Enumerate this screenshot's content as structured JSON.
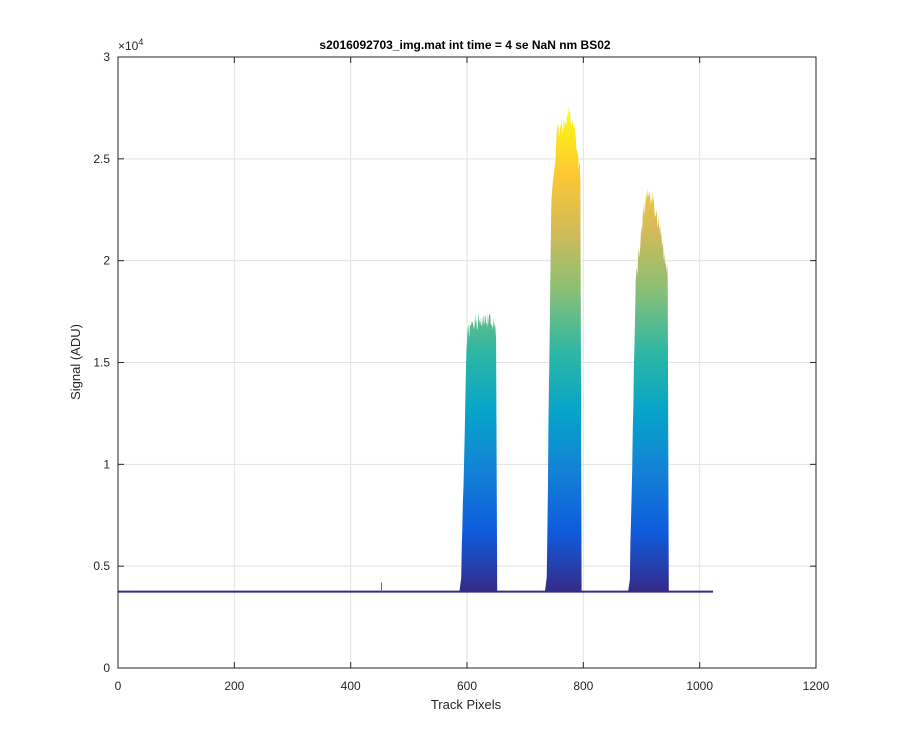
{
  "chart_data": {
    "type": "area",
    "title": "s2016092703_img.mat int time = 4 se  NaN nm BS02",
    "xlabel": "Track Pixels",
    "ylabel": "Signal (ADU)",
    "y_exponent_label": "×10",
    "y_exponent_power": "4",
    "xlim": [
      0,
      1200
    ],
    "ylim": [
      0,
      30000
    ],
    "x_ticks": [
      0,
      200,
      400,
      600,
      800,
      1000,
      1200
    ],
    "x_tick_labels": [
      "0",
      "200",
      "400",
      "600",
      "800",
      "1000",
      "1200"
    ],
    "y_ticks": [
      0,
      5000,
      10000,
      15000,
      20000,
      25000,
      30000
    ],
    "y_tick_labels": [
      "0",
      "0.5",
      "1",
      "1.5",
      "2",
      "2.5",
      "3"
    ],
    "grid": true,
    "colormap": [
      "#352a87",
      "#0f5cdd",
      "#1481d6",
      "#06a4ca",
      "#2eb7a4",
      "#87bf77",
      "#d1bb59",
      "#fec832",
      "#f9fb0e"
    ],
    "baseline": 3750,
    "baseline_x_range": [
      0,
      1023
    ],
    "series": [
      {
        "x": [
          590,
          600,
          610,
          620,
          630,
          640,
          650
        ],
        "y": [
          4500,
          16400,
          16900,
          17100,
          17300,
          17000,
          16500
        ]
      },
      {
        "x": [
          737,
          745,
          755,
          765,
          775,
          785,
          795
        ],
        "y": [
          4500,
          23000,
          26200,
          26700,
          27300,
          26400,
          24200
        ]
      },
      {
        "x": [
          880,
          890,
          900,
          910,
          920,
          930,
          945
        ],
        "y": [
          4500,
          18800,
          21500,
          23600,
          22900,
          21700,
          19500
        ]
      }
    ],
    "anomaly": {
      "x": 453,
      "y": 4200
    }
  }
}
